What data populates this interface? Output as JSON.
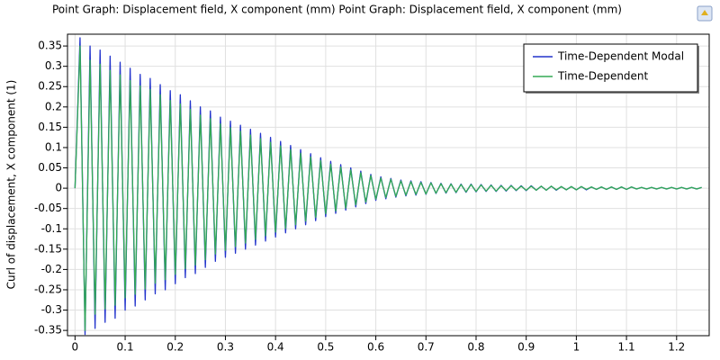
{
  "chart_data": {
    "type": "line",
    "title": "Point Graph: Displacement field, X component (mm)  Point Graph: Displacement field, X component (mm)",
    "ylabel": "Curl of displacement, X component (1)",
    "legend": "top-right",
    "grid": true,
    "xlim": [
      -0.015,
      1.265
    ],
    "ylim": [
      -0.363,
      0.379
    ],
    "xticks": [
      0,
      0.1,
      0.2,
      0.3,
      0.4,
      0.5,
      0.6,
      0.7,
      0.8,
      0.9,
      1,
      1.1,
      1.2
    ],
    "yticks": [
      -0.35,
      -0.3,
      -0.25,
      -0.2,
      -0.15,
      -0.1,
      -0.05,
      0,
      0.05,
      0.1,
      0.15,
      0.2,
      0.25,
      0.3,
      0.35
    ],
    "x": [
      0,
      0.01,
      0.02,
      0.03,
      0.04,
      0.05,
      0.06,
      0.07,
      0.08,
      0.09,
      0.1,
      0.11,
      0.12,
      0.13,
      0.14,
      0.15,
      0.16,
      0.17,
      0.18,
      0.19,
      0.2,
      0.21,
      0.22,
      0.23,
      0.24,
      0.25,
      0.26,
      0.27,
      0.28,
      0.29,
      0.3,
      0.31,
      0.32,
      0.33,
      0.34,
      0.35,
      0.36,
      0.37,
      0.38,
      0.39,
      0.4,
      0.41,
      0.42,
      0.43,
      0.44,
      0.45,
      0.46,
      0.47,
      0.48,
      0.49,
      0.5,
      0.51,
      0.52,
      0.53,
      0.54,
      0.55,
      0.56,
      0.57,
      0.58,
      0.59,
      0.6,
      0.61,
      0.62,
      0.63,
      0.64,
      0.65,
      0.66,
      0.67,
      0.68,
      0.69,
      0.7,
      0.71,
      0.72,
      0.73,
      0.74,
      0.75,
      0.76,
      0.77,
      0.78,
      0.79,
      0.8,
      0.81,
      0.82,
      0.83,
      0.84,
      0.85,
      0.86,
      0.87,
      0.88,
      0.89,
      0.9,
      0.91,
      0.92,
      0.93,
      0.94,
      0.95,
      0.96,
      0.97,
      0.98,
      0.99,
      1,
      1.01,
      1.02,
      1.03,
      1.04,
      1.05,
      1.06,
      1.07,
      1.08,
      1.09,
      1.1,
      1.11,
      1.12,
      1.13,
      1.14,
      1.15,
      1.16,
      1.17,
      1.18,
      1.19,
      1.2,
      1.21,
      1.22,
      1.23,
      1.24,
      1.25
    ],
    "series": [
      {
        "name": "Time-Dependent Modal",
        "color": "#2233cc",
        "values": [
          0,
          0.37,
          -0.36,
          0.35,
          -0.345,
          0.34,
          -0.33,
          0.325,
          -0.32,
          0.31,
          -0.3,
          0.295,
          -0.29,
          0.28,
          -0.275,
          0.27,
          -0.26,
          0.255,
          -0.25,
          0.24,
          -0.235,
          0.23,
          -0.22,
          0.215,
          -0.21,
          0.2,
          -0.195,
          0.19,
          -0.18,
          0.175,
          -0.17,
          0.165,
          -0.16,
          0.155,
          -0.15,
          0.145,
          -0.14,
          0.135,
          -0.13,
          0.125,
          -0.12,
          0.115,
          -0.11,
          0.105,
          -0.1,
          0.095,
          -0.09,
          0.085,
          -0.08,
          0.075,
          -0.07,
          0.066,
          -0.062,
          0.058,
          -0.054,
          0.05,
          -0.046,
          0.042,
          -0.038,
          0.034,
          -0.03,
          0.028,
          -0.026,
          0.024,
          -0.022,
          0.02,
          -0.019,
          0.018,
          -0.017,
          0.016,
          -0.015,
          0.014,
          -0.013,
          0.012,
          -0.012,
          0.011,
          -0.011,
          0.01,
          -0.01,
          0.01,
          -0.009,
          0.009,
          -0.008,
          0.008,
          -0.008,
          0.007,
          -0.007,
          0.007,
          -0.006,
          0.006,
          -0.006,
          0.006,
          -0.005,
          0.005,
          -0.005,
          0.005,
          -0.005,
          0.004,
          -0.004,
          0.004,
          -0.004,
          0.004,
          -0.004,
          0.003,
          -0.003,
          0.003,
          -0.003,
          0.003,
          -0.003,
          0.003,
          -0.003,
          0.003,
          -0.002,
          0.002,
          -0.002,
          0.002,
          -0.002,
          0.002,
          -0.002,
          0.002,
          -0.002,
          0.002,
          -0.002,
          0.002,
          -0.002,
          0.002
        ]
      },
      {
        "name": "Time-Dependent",
        "color": "#33aa55",
        "values": [
          0,
          0.35,
          -0.35,
          0.315,
          -0.31,
          0.305,
          -0.297,
          0.29,
          -0.288,
          0.279,
          -0.27,
          0.265,
          -0.261,
          0.252,
          -0.248,
          0.243,
          -0.234,
          0.23,
          -0.225,
          0.216,
          -0.212,
          0.207,
          -0.198,
          0.194,
          -0.189,
          0.18,
          -0.176,
          0.171,
          -0.162,
          0.158,
          -0.153,
          0.149,
          -0.144,
          0.14,
          -0.135,
          0.131,
          -0.126,
          0.122,
          -0.117,
          0.113,
          -0.108,
          0.104,
          -0.099,
          0.095,
          -0.09,
          0.086,
          -0.081,
          0.077,
          -0.072,
          0.068,
          -0.063,
          0.059,
          -0.056,
          0.052,
          -0.049,
          0.045,
          -0.041,
          0.038,
          -0.034,
          0.031,
          -0.027,
          0.025,
          -0.023,
          0.022,
          -0.02,
          0.018,
          -0.017,
          0.016,
          -0.015,
          0.014,
          -0.014,
          0.013,
          -0.012,
          0.011,
          -0.011,
          0.01,
          -0.01,
          0.009,
          -0.009,
          0.009,
          -0.008,
          0.008,
          -0.007,
          0.007,
          -0.007,
          0.006,
          -0.006,
          0.006,
          -0.005,
          0.005,
          -0.005,
          0.005,
          -0.005,
          0.005,
          -0.005,
          0.005,
          -0.004,
          0.004,
          -0.004,
          0.004,
          -0.004,
          0.004,
          -0.003,
          0.003,
          -0.003,
          0.003,
          -0.003,
          0.003,
          -0.003,
          0.003,
          -0.003,
          0.003,
          -0.002,
          0.002,
          -0.002,
          0.002,
          -0.002,
          0.002,
          -0.002,
          0.002,
          -0.002,
          0.002,
          -0.002,
          0.002,
          -0.002,
          0.002
        ]
      }
    ]
  }
}
